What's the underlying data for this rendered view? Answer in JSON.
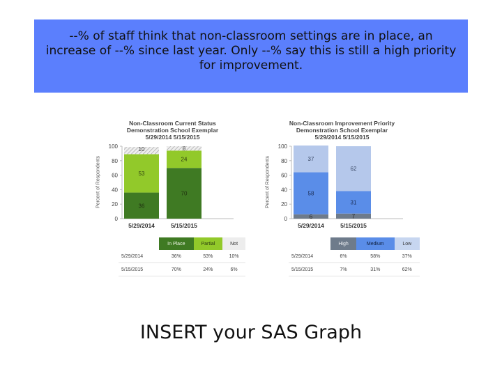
{
  "banner": {
    "text": "--% of staff think that non-classroom settings are in place, an increase of --% since last year.  Only --% say this is still a high priority for improvement."
  },
  "footer": {
    "text": "INSERT your SAS Graph"
  },
  "colors": {
    "in_place": "#3f7a23",
    "partial": "#92c92a",
    "not": "#d9d9d9",
    "high": "#6e7b8b",
    "medium": "#5a8de8",
    "low": "#b5c8eb",
    "banner": "#5b7ffd"
  },
  "chart_data": [
    {
      "type": "bar",
      "stacked": true,
      "title": "Non-Classroom Current Status",
      "subtitle": "Demonstration School Exemplar",
      "dates": "5/29/2014 5/15/2015",
      "ylabel": "Percent of Respondents",
      "ylim": [
        0,
        100
      ],
      "yticks": [
        "0",
        "20",
        "40",
        "60",
        "80",
        "100"
      ],
      "categories": [
        "5/29/2014",
        "5/15/2015"
      ],
      "series": [
        {
          "name": "In Place",
          "values": [
            36,
            70
          ]
        },
        {
          "name": "Partial",
          "values": [
            53,
            24
          ]
        },
        {
          "name": "Not",
          "values": [
            10,
            6
          ]
        }
      ],
      "bar_labels": [
        [
          "36",
          "53",
          "10"
        ],
        [
          "70",
          "24",
          "6"
        ]
      ],
      "table": {
        "headers": [
          "In Place",
          "Partial",
          "Not"
        ],
        "rows": [
          {
            "label": "5/29/2014",
            "cells": [
              "36%",
              "53%",
              "10%"
            ]
          },
          {
            "label": "5/15/2015",
            "cells": [
              "70%",
              "24%",
              "6%"
            ]
          }
        ]
      }
    },
    {
      "type": "bar",
      "stacked": true,
      "title": "Non-Classroom Improvement Priority",
      "subtitle": "Demonstration School Exemplar",
      "dates": "5/29/2014 5/15/2015",
      "ylabel": "Percent of Respondents",
      "ylim": [
        0,
        100
      ],
      "yticks": [
        "0",
        "20",
        "40",
        "60",
        "80",
        "100"
      ],
      "categories": [
        "5/29/2014",
        "5/15/2015"
      ],
      "series": [
        {
          "name": "High",
          "values": [
            6,
            7
          ]
        },
        {
          "name": "Medium",
          "values": [
            58,
            31
          ]
        },
        {
          "name": "Low",
          "values": [
            37,
            62
          ]
        }
      ],
      "bar_labels": [
        [
          "6",
          "58",
          "37"
        ],
        [
          "7",
          "31",
          "62"
        ]
      ],
      "table": {
        "headers": [
          "High",
          "Medium",
          "Low"
        ],
        "rows": [
          {
            "label": "5/29/2014",
            "cells": [
              "6%",
              "58%",
              "37%"
            ]
          },
          {
            "label": "5/15/2015",
            "cells": [
              "7%",
              "31%",
              "62%"
            ]
          }
        ]
      }
    }
  ]
}
